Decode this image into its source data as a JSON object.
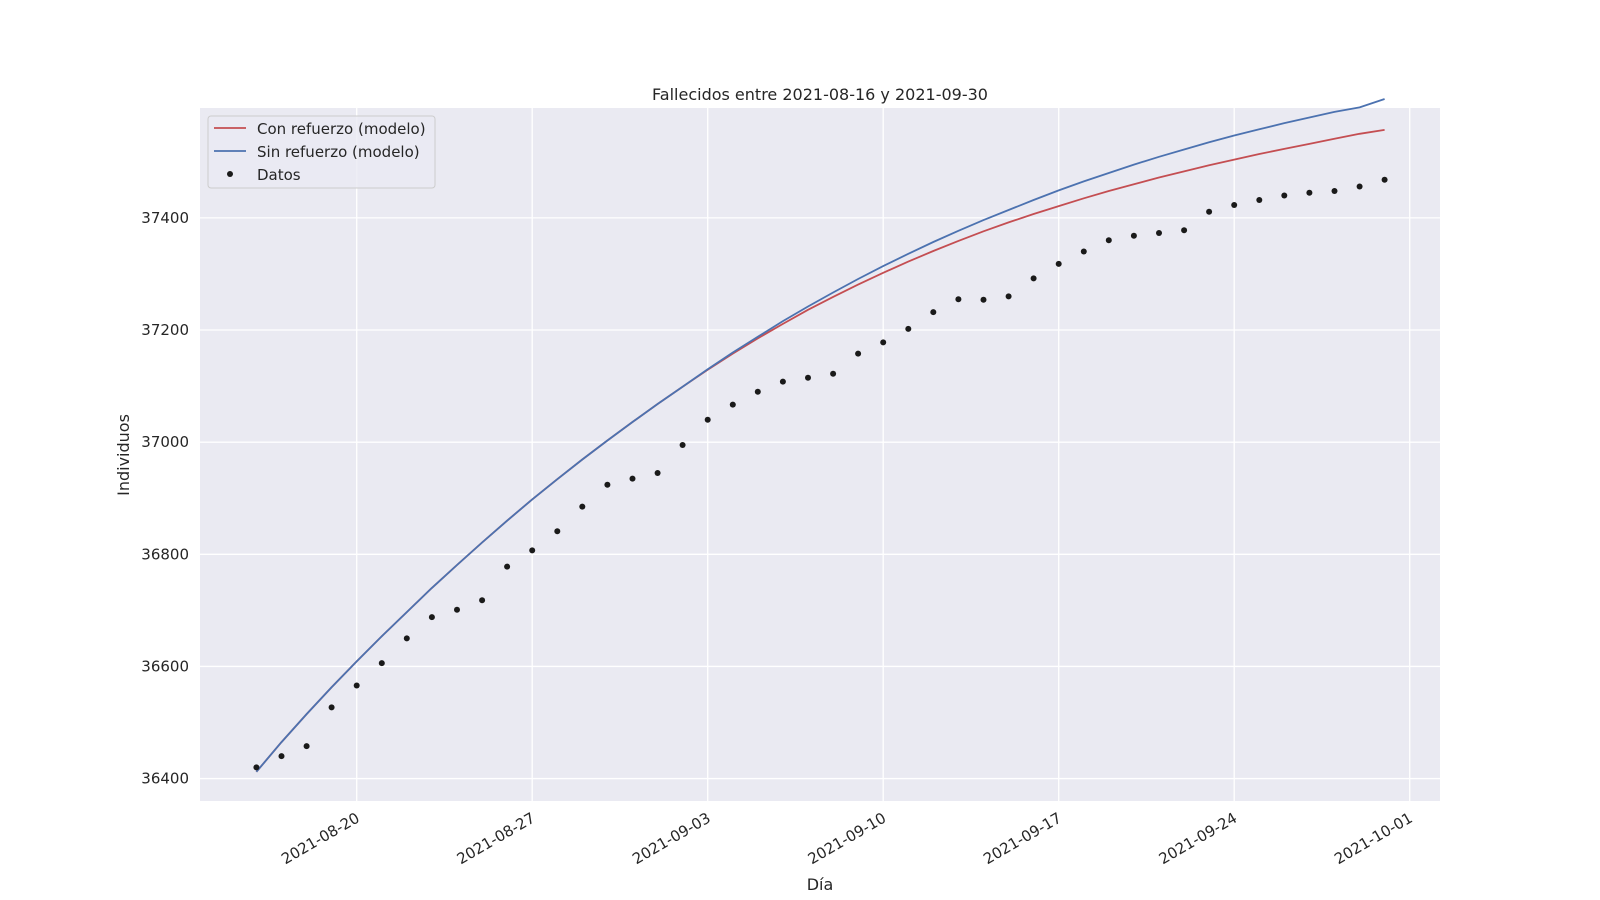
{
  "chart_data": {
    "type": "line",
    "title": "Fallecidos entre 2021-08-16 y 2021-09-30",
    "xlabel": "Día",
    "ylabel": "Individuos",
    "xlim": [
      "2021-08-13T18:00",
      "2021-10-02T05:00"
    ],
    "ylim": [
      36360,
      37596
    ],
    "grid": true,
    "legend_position": "top-left",
    "x_ticks": [
      "2021-08-20",
      "2021-08-27",
      "2021-09-03",
      "2021-09-10",
      "2021-09-17",
      "2021-09-24",
      "2021-10-01"
    ],
    "y_ticks": [
      36400,
      36600,
      36800,
      37000,
      37200,
      37400
    ],
    "x": [
      "2021-08-16",
      "2021-08-17",
      "2021-08-18",
      "2021-08-19",
      "2021-08-20",
      "2021-08-21",
      "2021-08-22",
      "2021-08-23",
      "2021-08-24",
      "2021-08-25",
      "2021-08-26",
      "2021-08-27",
      "2021-08-28",
      "2021-08-29",
      "2021-08-30",
      "2021-08-31",
      "2021-09-01",
      "2021-09-02",
      "2021-09-03",
      "2021-09-04",
      "2021-09-05",
      "2021-09-06",
      "2021-09-07",
      "2021-09-08",
      "2021-09-09",
      "2021-09-10",
      "2021-09-11",
      "2021-09-12",
      "2021-09-13",
      "2021-09-14",
      "2021-09-15",
      "2021-09-16",
      "2021-09-17",
      "2021-09-18",
      "2021-09-19",
      "2021-09-20",
      "2021-09-21",
      "2021-09-22",
      "2021-09-23",
      "2021-09-24",
      "2021-09-25",
      "2021-09-26",
      "2021-09-27",
      "2021-09-28",
      "2021-09-29",
      "2021-09-30"
    ],
    "series": [
      {
        "name": "Con refuerzo (modelo)",
        "kind": "line",
        "color": "#c44e52",
        "values": [
          36412,
          36465,
          36515,
          36563,
          36609,
          36654,
          36697,
          36740,
          36781,
          36821,
          36860,
          36898,
          36934,
          36969,
          37003,
          37036,
          37068,
          37099,
          37129,
          37158,
          37185,
          37211,
          37236,
          37259,
          37281,
          37302,
          37322,
          37341,
          37359,
          37376,
          37392,
          37407,
          37421,
          37435,
          37448,
          37460,
          37472,
          37483,
          37494,
          37504,
          37514,
          37523,
          37532,
          37541,
          37550,
          37557
        ]
      },
      {
        "name": "Sin refuerzo (modelo)",
        "kind": "line",
        "color": "#4c72b0",
        "values": [
          36412,
          36465,
          36515,
          36563,
          36609,
          36654,
          36697,
          36740,
          36781,
          36821,
          36860,
          36898,
          36934,
          36969,
          37003,
          37036,
          37068,
          37099,
          37130,
          37160,
          37188,
          37216,
          37242,
          37267,
          37291,
          37314,
          37336,
          37357,
          37377,
          37396,
          37414,
          37432,
          37449,
          37465,
          37480,
          37495,
          37509,
          37522,
          37535,
          37547,
          37558,
          37569,
          37579,
          37589,
          37597,
          37612
        ]
      },
      {
        "name": "Datos",
        "kind": "scatter",
        "color": "#1a1a1a",
        "values": [
          36420,
          36440,
          36458,
          36527,
          36566,
          36606,
          36650,
          36688,
          36701,
          36718,
          36778,
          36807,
          36841,
          36885,
          36924,
          36935,
          36945,
          36995,
          37040,
          37067,
          37090,
          37108,
          37115,
          37122,
          37158,
          37178,
          37202,
          37232,
          37255,
          37254,
          37260,
          37292,
          37318,
          37340,
          37360,
          37368,
          37373,
          37378,
          37411,
          37423,
          37432,
          37440,
          37445,
          37448,
          37456,
          37468
        ]
      }
    ]
  }
}
